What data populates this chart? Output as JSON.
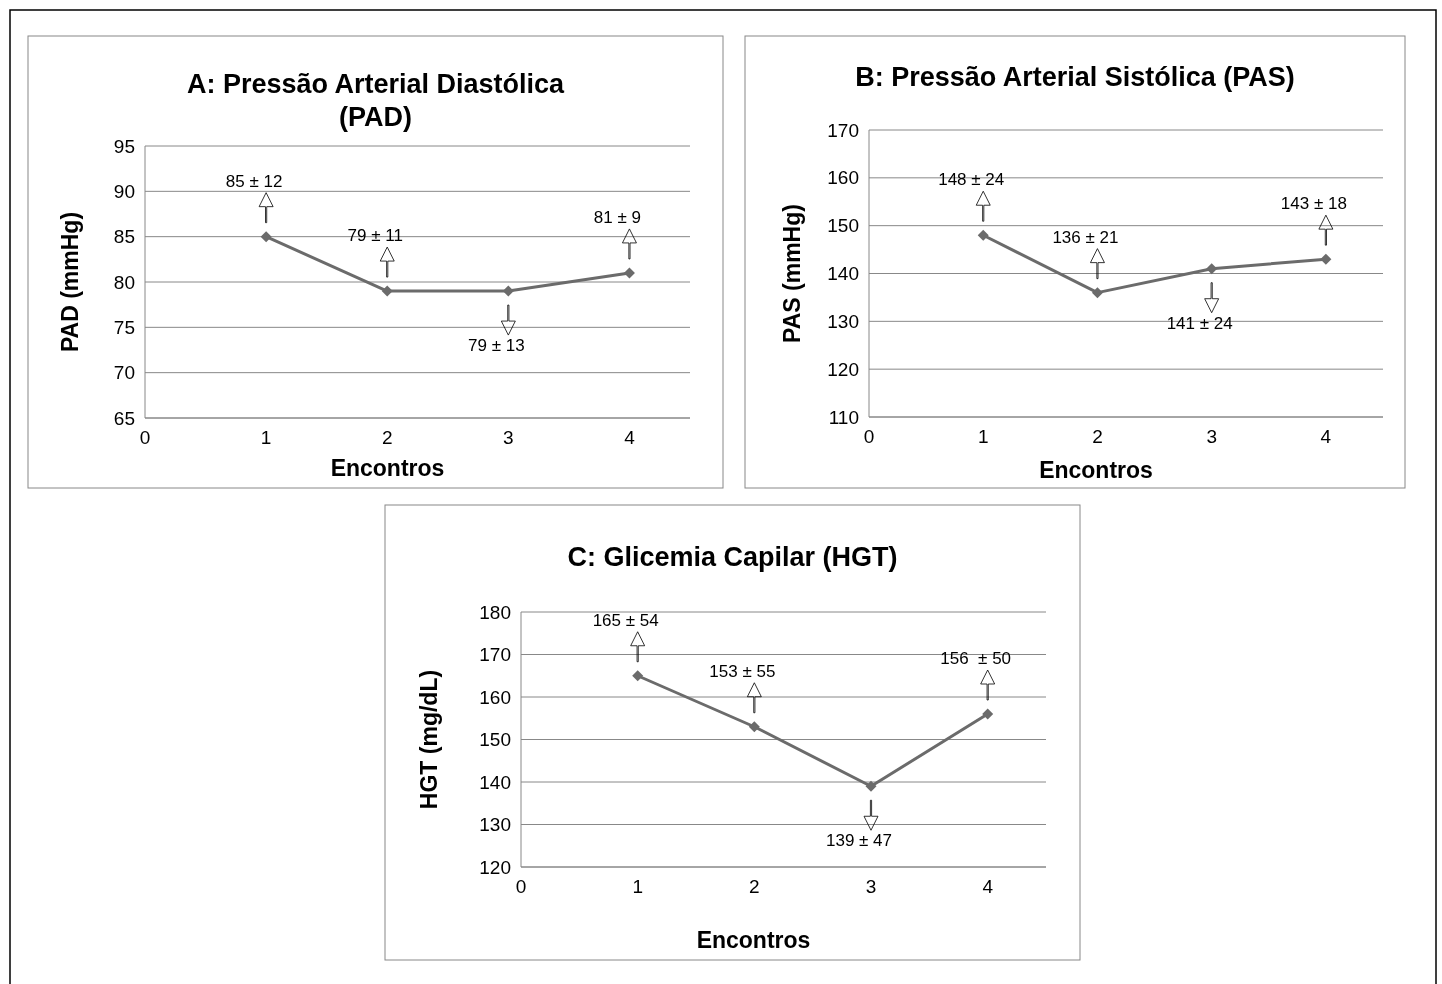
{
  "chart_data": [
    {
      "type": "line",
      "title": "A: Pressão Arterial Diastólica (PAD)",
      "xlabel": "Encontros",
      "ylabel": "PAD (mmHg)",
      "x": [
        1,
        2,
        3,
        4
      ],
      "series": [
        {
          "color": "#6b6b6b",
          "values": [
            85,
            79,
            79,
            81
          ]
        }
      ],
      "xlim": [
        0,
        4.5
      ],
      "xticks": [
        0,
        1,
        2,
        3,
        4
      ],
      "ylim": [
        65,
        95
      ],
      "yticks": [
        65,
        70,
        75,
        80,
        85,
        90,
        95
      ],
      "grid": "y",
      "marker": "diamond",
      "annotations": [
        {
          "text": "85 ± 12",
          "x": 1,
          "y": 85
        },
        {
          "text": "79 ± 11",
          "x": 2,
          "y": 79
        },
        {
          "text": "79 ± 13",
          "x": 3,
          "y": 79
        },
        {
          "text": "81 ± 9",
          "x": 4,
          "y": 81
        }
      ]
    },
    {
      "type": "line",
      "title": "B: Pressão Arterial Sistólica (PAS)",
      "xlabel": "Encontros",
      "ylabel": "PAS (mmHg)",
      "x": [
        1,
        2,
        3,
        4
      ],
      "series": [
        {
          "color": "#6b6b6b",
          "values": [
            148,
            136,
            141,
            143
          ]
        }
      ],
      "xlim": [
        0,
        4.5
      ],
      "xticks": [
        0,
        1,
        2,
        3,
        4
      ],
      "ylim": [
        110,
        170
      ],
      "yticks": [
        110,
        120,
        130,
        140,
        150,
        160,
        170
      ],
      "grid": "y",
      "marker": "diamond",
      "annotations": [
        {
          "text": "148 ± 24",
          "x": 1,
          "y": 148
        },
        {
          "text": "136 ± 21",
          "x": 2,
          "y": 136
        },
        {
          "text": "141 ± 24",
          "x": 3,
          "y": 141
        },
        {
          "text": "143 ± 18",
          "x": 4,
          "y": 143
        }
      ]
    },
    {
      "type": "line",
      "title": "C: Glicemia Capilar (HGT)",
      "xlabel": "Encontros",
      "ylabel": "HGT (mg/dL)",
      "x": [
        1,
        2,
        3,
        4
      ],
      "series": [
        {
          "color": "#6b6b6b",
          "values": [
            165,
            153,
            139,
            156
          ]
        }
      ],
      "xlim": [
        0,
        4.5
      ],
      "xticks": [
        0,
        1,
        2,
        3,
        4
      ],
      "ylim": [
        120,
        180
      ],
      "yticks": [
        120,
        130,
        140,
        150,
        160,
        170,
        180
      ],
      "grid": "y",
      "marker": "diamond",
      "annotations": [
        {
          "text": "165 ± 54",
          "x": 1,
          "y": 165
        },
        {
          "text": "153 ± 55",
          "x": 2,
          "y": 153
        },
        {
          "text": "139 ± 47",
          "x": 3,
          "y": 139
        },
        {
          "text": "156  ± 50",
          "x": 4,
          "y": 156
        }
      ]
    }
  ]
}
